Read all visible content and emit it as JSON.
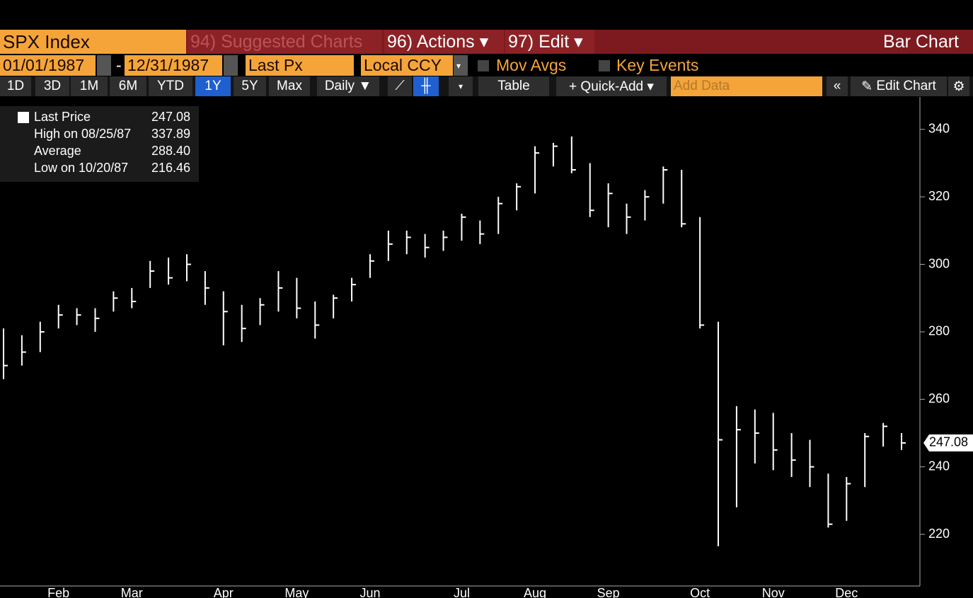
{
  "toolbar": {
    "security": "SPX Index",
    "suggested": "94) Suggested Charts",
    "actions": "96) Actions ▾",
    "edit": "97) Edit ▾",
    "view": "Bar Chart",
    "start_date": "01/01/1987",
    "end_date": "12/31/1987",
    "field": "Last Px",
    "currency": "Local CCY",
    "mov_avgs": "Mov Avgs",
    "key_events": "Key Events",
    "periods": [
      "1D",
      "3D",
      "1M",
      "6M",
      "YTD",
      "1Y",
      "5Y",
      "Max"
    ],
    "frequency": "Daily ▼",
    "table": "Table",
    "quick_add": "+ Quick-Add ▾",
    "add_data": "Add Data",
    "edit_chart": "Edit Chart"
  },
  "legend": [
    {
      "label": "Last Price",
      "value": "247.08"
    },
    {
      "label": "High on 08/25/87",
      "value": "337.89"
    },
    {
      "label": "Average",
      "value": "288.40"
    },
    {
      "label": "Low on 10/20/87",
      "value": "216.46"
    }
  ],
  "chart_data": {
    "type": "ohlc",
    "categories": [
      null,
      null,
      null,
      "Feb",
      null,
      null,
      null,
      "Mar",
      null,
      null,
      null,
      null,
      "Apr",
      null,
      null,
      null,
      "May",
      null,
      null,
      null,
      "Jun",
      null,
      null,
      null,
      null,
      "Jul",
      null,
      null,
      null,
      "Aug",
      null,
      null,
      null,
      "Sep",
      null,
      null,
      null,
      null,
      "Oct",
      null,
      null,
      null,
      "Nov",
      null,
      null,
      null,
      "Dec",
      null,
      null,
      null
    ],
    "high": [
      281,
      279,
      283,
      288,
      287,
      287,
      292,
      293,
      301,
      302,
      303,
      298,
      292,
      288,
      290,
      298,
      296,
      289,
      291,
      296,
      303,
      310,
      310,
      309,
      310,
      315,
      313,
      320,
      324,
      335,
      336,
      337.89,
      330,
      324,
      318,
      322,
      329,
      328,
      314,
      283,
      258,
      257,
      256,
      250,
      248,
      238,
      237,
      250,
      253,
      250
    ],
    "low": [
      266,
      270,
      274,
      281,
      282,
      280,
      286,
      287,
      293,
      294,
      295,
      288,
      276,
      277,
      282,
      286,
      284,
      278,
      284,
      289,
      296,
      301,
      303,
      302,
      304,
      307,
      306,
      309,
      316,
      321,
      329,
      327,
      314,
      311,
      309,
      313,
      318,
      311,
      281,
      216.46,
      228,
      241,
      239,
      237,
      234,
      222,
      224,
      234,
      246,
      245
    ],
    "close": [
      270,
      274,
      280,
      285,
      285,
      284,
      290,
      289,
      298,
      296,
      300,
      293,
      286,
      281,
      288,
      293,
      287,
      282,
      290,
      294,
      301,
      306,
      308,
      305,
      308,
      314,
      309,
      318,
      323,
      333,
      335,
      328,
      316,
      321,
      314,
      320,
      328,
      312,
      282,
      248,
      251,
      250,
      245,
      242,
      240,
      223,
      235,
      249,
      252,
      247.08
    ],
    "color": "#ffffff",
    "ylim": [
      204.7,
      349.6
    ],
    "yticks": [
      220,
      240,
      260,
      280,
      300,
      320,
      340
    ]
  }
}
